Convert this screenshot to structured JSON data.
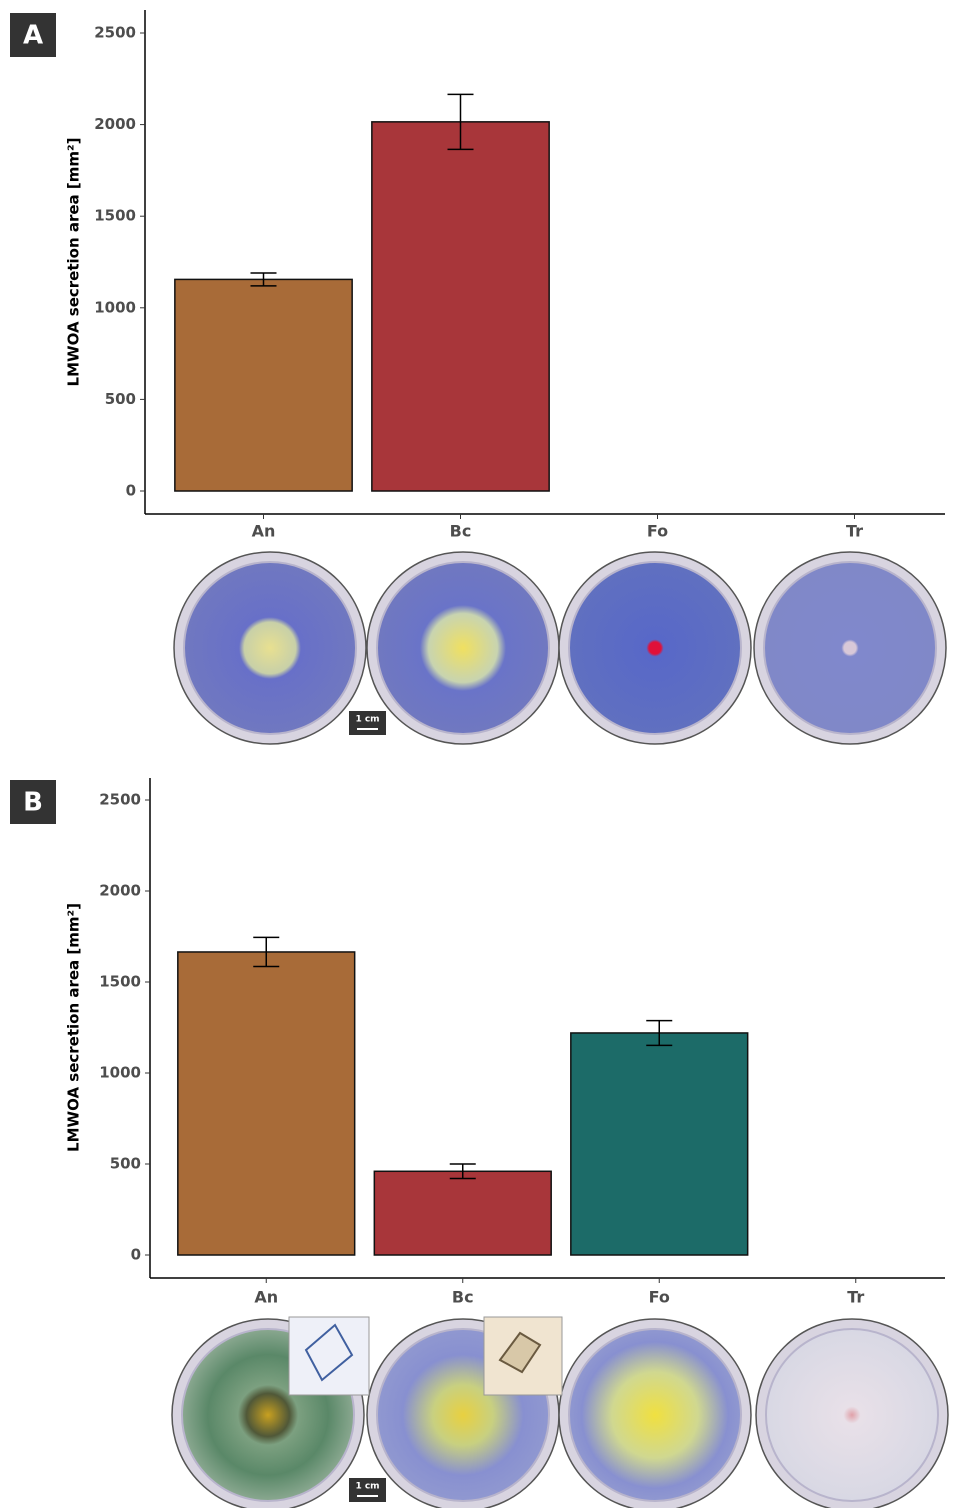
{
  "chart_data": [
    {
      "type": "bar",
      "panel_label": "A",
      "ylabel": "LMWOA secretion area [mm²]",
      "categories": [
        "An",
        "Bc",
        "Fo",
        "Tr"
      ],
      "values": [
        1155,
        2015,
        0,
        0
      ],
      "errors": [
        35,
        150,
        0,
        0
      ],
      "colors": [
        "#a86b38",
        "#a8363a",
        "#1c6b68",
        "#6b6b6b"
      ],
      "ylim": [
        0,
        2500
      ],
      "yticks": [
        0,
        500,
        1000,
        1500,
        2000,
        2500
      ],
      "scale_label": "1 cm"
    },
    {
      "type": "bar",
      "panel_label": "B",
      "ylabel": "LMWOA secretion area [mm²]",
      "categories": [
        "An",
        "Bc",
        "Fo",
        "Tr"
      ],
      "values": [
        1665,
        460,
        1220,
        0
      ],
      "errors": [
        80,
        40,
        68,
        0
      ],
      "colors": [
        "#a86b38",
        "#a8363a",
        "#1c6b68",
        "#6b6b6b"
      ],
      "ylim": [
        0,
        2500
      ],
      "yticks": [
        0,
        500,
        1000,
        1500,
        2000,
        2500
      ],
      "scale_label": "1 cm"
    }
  ]
}
